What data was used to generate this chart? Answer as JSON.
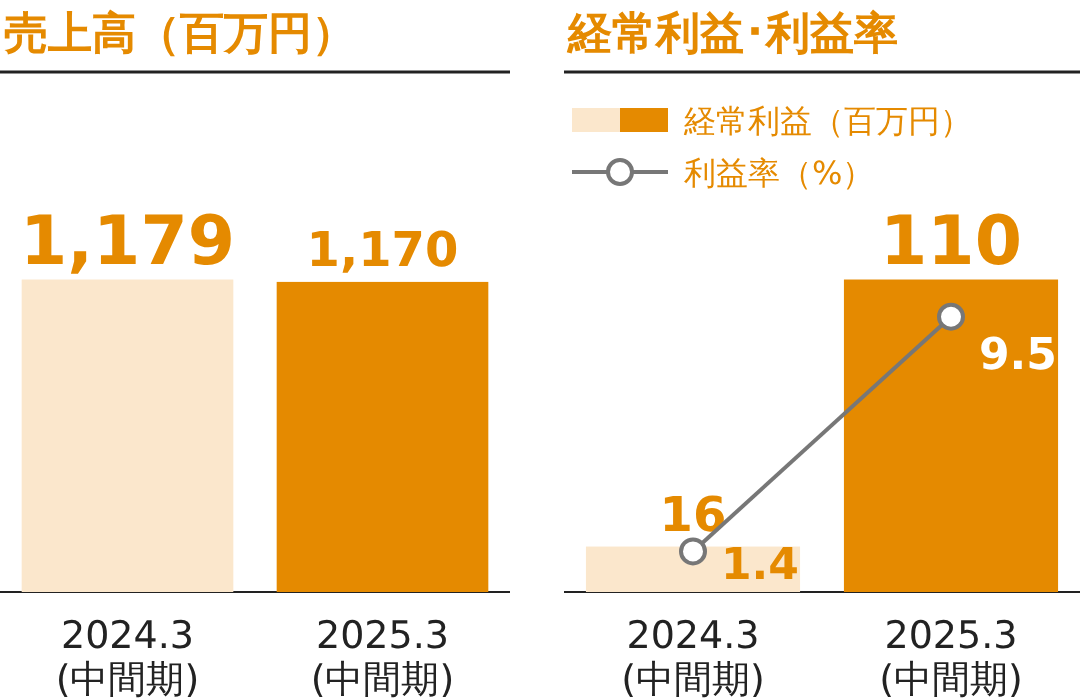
{
  "chart_data": [
    {
      "type": "bar",
      "title": "売上高（百万円）",
      "categories": [
        "2024.3\n(中間期)",
        "2025.3\n(中間期)"
      ],
      "values": [
        1179,
        1170
      ],
      "value_labels": [
        "1,179",
        "1,170"
      ],
      "colors": [
        "#fbe7cc",
        "#e58a00"
      ]
    },
    {
      "type": "bar",
      "title": "経常利益･利益率",
      "categories": [
        "2024.3\n(中間期)",
        "2025.3\n(中間期)"
      ],
      "legend": "top",
      "series": [
        {
          "name": "経常利益（百万円）",
          "type": "bar",
          "colors": [
            "#fbe7cc",
            "#e58a00"
          ],
          "values": [
            16,
            110
          ]
        },
        {
          "name": "利益率（%）",
          "type": "line",
          "axis": "y2",
          "color": "#777777",
          "marker": "circle",
          "values": [
            1.4,
            9.5
          ]
        }
      ],
      "data_labels": true
    }
  ]
}
